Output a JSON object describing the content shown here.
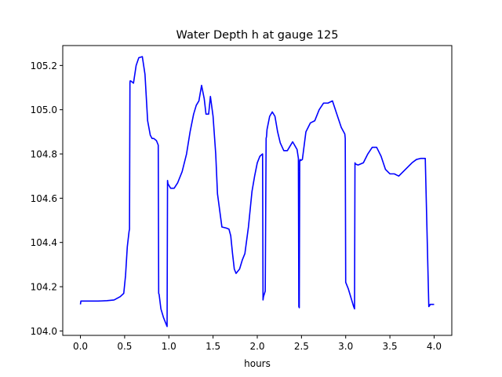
{
  "chart_data": {
    "type": "line",
    "title": "Water Depth h at gauge 125",
    "xlabel": "hours",
    "ylabel": "",
    "xlim": [
      -0.2,
      4.2
    ],
    "ylim": [
      103.98,
      105.29
    ],
    "grid": false,
    "x_ticks": [
      0.0,
      0.5,
      1.0,
      1.5,
      2.0,
      2.5,
      3.0,
      3.5,
      4.0
    ],
    "x_tick_labels": [
      "0.0",
      "0.5",
      "1.0",
      "1.5",
      "2.0",
      "2.5",
      "3.0",
      "3.5",
      "4.0"
    ],
    "y_ticks": [
      104.0,
      104.2,
      104.4,
      104.6,
      104.8,
      105.0,
      105.2
    ],
    "y_tick_labels": [
      "104.0",
      "104.2",
      "104.4",
      "104.6",
      "104.8",
      "105.0",
      "105.2"
    ],
    "series": [
      {
        "color": "#0000ff",
        "x": [
          0.0,
          0.005,
          0.1,
          0.2,
          0.3,
          0.38,
          0.45,
          0.49,
          0.51,
          0.53,
          0.55,
          0.555,
          0.56,
          0.562,
          0.57,
          0.6,
          0.63,
          0.66,
          0.7,
          0.73,
          0.76,
          0.79,
          0.81,
          0.83,
          0.86,
          0.88,
          0.885,
          0.89,
          0.91,
          0.94,
          0.97,
          0.98,
          0.985,
          0.99,
          1.02,
          1.06,
          1.1,
          1.15,
          1.2,
          1.24,
          1.28,
          1.31,
          1.34,
          1.37,
          1.4,
          1.42,
          1.45,
          1.47,
          1.5,
          1.53,
          1.55,
          1.6,
          1.65,
          1.68,
          1.7,
          1.72,
          1.74,
          1.76,
          1.8,
          1.83,
          1.86,
          1.9,
          1.94,
          1.97,
          2.0,
          2.03,
          2.06,
          2.065,
          2.07,
          2.09,
          2.1,
          2.105,
          2.11,
          2.14,
          2.17,
          2.2,
          2.23,
          2.26,
          2.3,
          2.34,
          2.37,
          2.4,
          2.45,
          2.465,
          2.47,
          2.475,
          2.48,
          2.485,
          2.49,
          2.51,
          2.55,
          2.6,
          2.65,
          2.7,
          2.75,
          2.8,
          2.85,
          2.9,
          2.95,
          2.99,
          2.995,
          3.0,
          3.03,
          3.06,
          3.09,
          3.1,
          3.105,
          3.11,
          3.14,
          3.2,
          3.25,
          3.3,
          3.35,
          3.4,
          3.45,
          3.5,
          3.55,
          3.6,
          3.65,
          3.7,
          3.75,
          3.8,
          3.85,
          3.9,
          3.94,
          3.95,
          3.955,
          3.96,
          3.98,
          4.0
        ],
        "y": [
          104.12,
          104.135,
          104.135,
          104.135,
          104.137,
          104.14,
          104.155,
          104.17,
          104.25,
          104.38,
          104.45,
          104.46,
          105.12,
          105.13,
          105.13,
          105.12,
          105.2,
          105.235,
          105.24,
          105.16,
          104.95,
          104.885,
          104.87,
          104.87,
          104.86,
          104.84,
          104.17,
          104.165,
          104.1,
          104.06,
          104.03,
          104.02,
          104.68,
          104.665,
          104.645,
          104.645,
          104.67,
          104.72,
          104.8,
          104.9,
          104.98,
          105.02,
          105.04,
          105.11,
          105.05,
          104.98,
          104.98,
          105.06,
          104.97,
          104.8,
          104.62,
          104.47,
          104.465,
          104.46,
          104.43,
          104.35,
          104.28,
          104.26,
          104.28,
          104.32,
          104.35,
          104.47,
          104.63,
          104.7,
          104.76,
          104.79,
          104.8,
          104.14,
          104.155,
          104.18,
          104.87,
          104.88,
          104.91,
          104.97,
          104.99,
          104.97,
          104.9,
          104.85,
          104.815,
          104.815,
          104.835,
          104.855,
          104.82,
          104.78,
          104.11,
          104.105,
          104.77,
          104.775,
          104.77,
          104.775,
          104.9,
          104.94,
          104.95,
          105.0,
          105.03,
          105.03,
          105.04,
          104.98,
          104.92,
          104.89,
          104.87,
          104.22,
          104.19,
          104.15,
          104.11,
          104.1,
          104.76,
          104.755,
          104.75,
          104.76,
          104.8,
          104.83,
          104.83,
          104.79,
          104.73,
          104.71,
          104.71,
          104.7,
          104.72,
          104.74,
          104.76,
          104.775,
          104.78,
          104.78,
          104.11,
          104.115,
          104.12,
          104.12,
          104.12,
          104.12
        ]
      }
    ]
  }
}
